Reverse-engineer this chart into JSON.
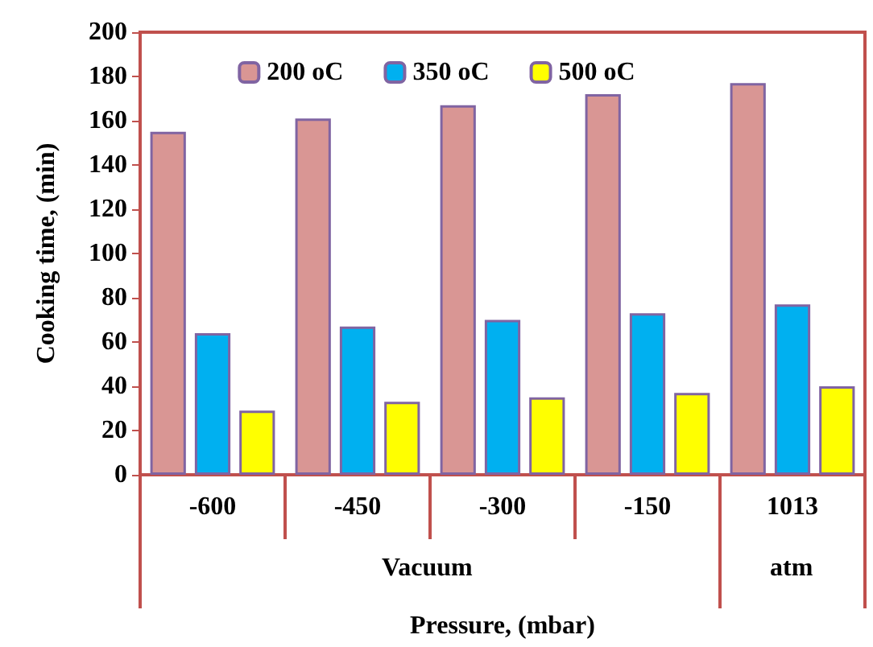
{
  "chart_data": {
    "type": "bar",
    "xlabel": "Pressure, (mbar)",
    "ylabel": "Cooking time, (min)",
    "categories": [
      "-600",
      "-450",
      "-300",
      "-150",
      "1013"
    ],
    "series": [
      {
        "name": "200 oC",
        "color": "#d99694",
        "values": [
          155,
          161,
          167,
          172,
          177
        ]
      },
      {
        "name": "350 oC",
        "color": "#00b0f0",
        "values": [
          64,
          67,
          70,
          73,
          77
        ]
      },
      {
        "name": "500 oC",
        "color": "#ffff00",
        "values": [
          29,
          33,
          35,
          37,
          40
        ]
      }
    ],
    "ylim": [
      0,
      200
    ],
    "yticks": [
      0,
      20,
      40,
      60,
      80,
      100,
      120,
      140,
      160,
      180,
      200
    ],
    "grid": false,
    "legend": "top",
    "annotations": [
      "Vacuum",
      "atm"
    ]
  }
}
